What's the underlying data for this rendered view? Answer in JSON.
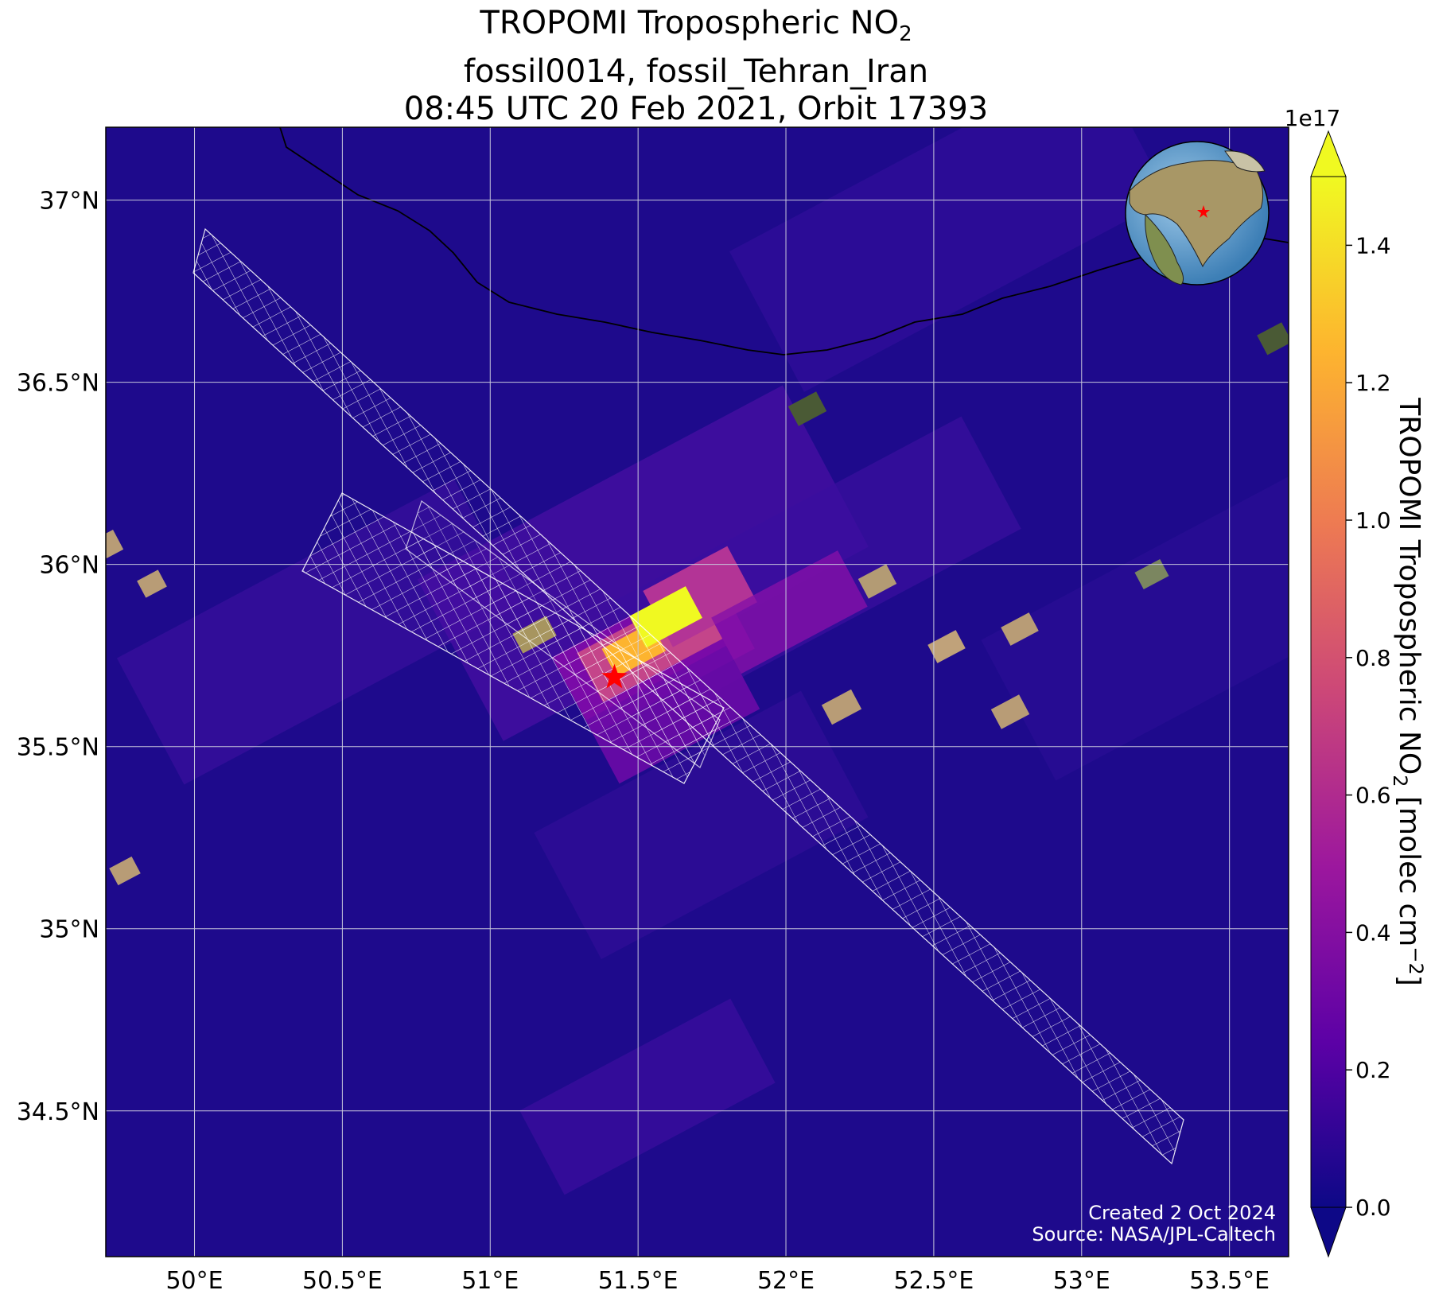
{
  "title": {
    "line1_main": "TROPOMI Tropospheric NO",
    "line1_sub": "2",
    "line2": "fossil0014, fossil_Tehran_Iran",
    "line3": "08:45 UTC 20 Feb 2021, Orbit 17393"
  },
  "map": {
    "lon_range": [
      49.7,
      53.7
    ],
    "lat_range": [
      34.1,
      37.2
    ],
    "x_ticks": [
      {
        "value": 50.0,
        "label": "50°E"
      },
      {
        "value": 50.5,
        "label": "50.5°E"
      },
      {
        "value": 51.0,
        "label": "51°E"
      },
      {
        "value": 51.5,
        "label": "51.5°E"
      },
      {
        "value": 52.0,
        "label": "52°E"
      },
      {
        "value": 52.5,
        "label": "52.5°E"
      },
      {
        "value": 53.0,
        "label": "53°E"
      },
      {
        "value": 53.5,
        "label": "53.5°E"
      }
    ],
    "y_ticks": [
      {
        "value": 37.0,
        "label": "37°N"
      },
      {
        "value": 36.5,
        "label": "36.5°N"
      },
      {
        "value": 36.0,
        "label": "36°N"
      },
      {
        "value": 35.5,
        "label": "35.5°N"
      },
      {
        "value": 35.0,
        "label": "35°N"
      },
      {
        "value": 34.5,
        "label": "34.5°N"
      }
    ],
    "grid": true,
    "background_color": "#1e0a8c",
    "target_marker": {
      "lon": 51.42,
      "lat": 35.69,
      "symbol": "star",
      "color": "#ff0000"
    },
    "inset_globe": {
      "icon": "globe-icon",
      "marker": "star"
    }
  },
  "colorbar": {
    "label_main": "TROPOMI Tropospheric NO",
    "label_sub": "2",
    "label_units_prefix": "[molec cm",
    "label_units_sup": "−2",
    "label_units_suffix": "]",
    "offset_label": "1e17",
    "ticks": [
      {
        "value": 0.0,
        "label": "0.0"
      },
      {
        "value": 0.2,
        "label": "0.2"
      },
      {
        "value": 0.4,
        "label": "0.4"
      },
      {
        "value": 0.6,
        "label": "0.6"
      },
      {
        "value": 0.8,
        "label": "0.8"
      },
      {
        "value": 1.0,
        "label": "1.0"
      },
      {
        "value": 1.2,
        "label": "1.2"
      },
      {
        "value": 1.4,
        "label": "1.4"
      }
    ],
    "range": [
      0.0,
      1.5
    ],
    "colormap": [
      "#0d0887",
      "#5c01a6",
      "#9c179e",
      "#cc4778",
      "#ed7953",
      "#fdb42f",
      "#f0f921"
    ],
    "extend": "both"
  },
  "credits": {
    "created": "Created 2 Oct 2024",
    "source": "Source: NASA/JPL-Caltech"
  }
}
